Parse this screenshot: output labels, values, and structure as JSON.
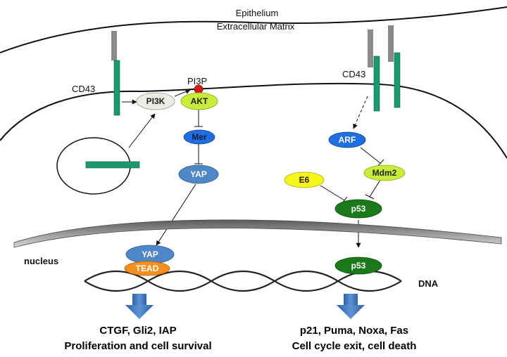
{
  "labels": {
    "epithelium": "Epithelium",
    "extracellular_matrix": "Extracellular  Matrix",
    "cd43_left": "CD43",
    "cd43_right": "CD43",
    "pi3p": "PI3P",
    "nucleus": "nucleus",
    "dna": "DNA"
  },
  "nodes": {
    "pi3k": "PI3K",
    "akt": "AKT",
    "mer": "Mer",
    "yap": "YAP",
    "yap_nuc": "YAP",
    "tead": "TEAD",
    "arf": "ARF",
    "mdm2": "Mdm2",
    "e6": "E6",
    "p53": "p53",
    "p53_nuc": "p53"
  },
  "outputs": {
    "left_line1": "CTGF, Gli2, IAP",
    "left_line2": "Proliferation and cell survival",
    "right_line1": "p21, Puma, Noxa, Fas",
    "right_line2": "Cell cycle exit, cell death"
  },
  "colors": {
    "cd43_green": "#1a9a6c",
    "receptor_gray": "#8a8a8a",
    "pi3k_fill": "#ecebe4",
    "akt_fill": "#c9ec3a",
    "mer_fill": "#1f6fe0",
    "yap_fill": "#4f86c6",
    "tead_fill": "#f5901e",
    "arf_fill": "#1f6fe0",
    "mdm2_fill": "#c9ec3a",
    "e6_fill": "#f6f61c",
    "p53_fill": "#1a7a1a",
    "pi3p_dot": "#d11919",
    "arrow_blue": "#3f78c4"
  }
}
